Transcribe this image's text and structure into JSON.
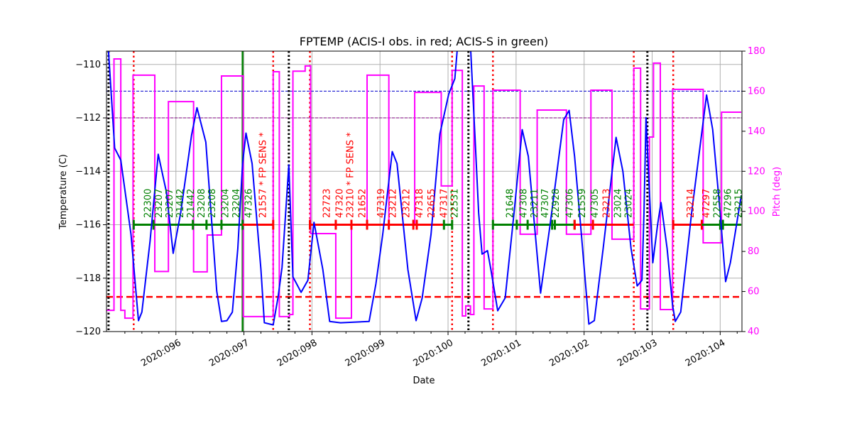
{
  "chart_data": {
    "type": "line",
    "title": "FPTEMP (ACIS-I obs. in red; ACIS-S in green)",
    "xlabel": "Date",
    "ylabel": "Temperature (C)",
    "y2label": "Pitch (deg)",
    "xlim": [
      94.98,
      104.32
    ],
    "ylim": [
      -120,
      -109.5
    ],
    "y2lim": [
      40,
      180
    ],
    "grid": true,
    "x_ticks": [
      {
        "day": 96,
        "label": "2020:096"
      },
      {
        "day": 97,
        "label": "2020:097"
      },
      {
        "day": 98,
        "label": "2020:098"
      },
      {
        "day": 99,
        "label": "2020:099"
      },
      {
        "day": 100,
        "label": "2020:100"
      },
      {
        "day": 101,
        "label": "2020:101"
      },
      {
        "day": 102,
        "label": "2020:102"
      },
      {
        "day": 103,
        "label": "2020:103"
      },
      {
        "day": 104,
        "label": "2020:104"
      }
    ],
    "y_ticks": [
      -120,
      -118,
      -116,
      -114,
      -112,
      -110
    ],
    "y2_ticks": [
      40,
      60,
      80,
      100,
      120,
      140,
      160,
      180
    ],
    "colors": {
      "temperature": "#0000ff",
      "pitch": "#ff00ff",
      "acis_i": "#ff0000",
      "acis_s": "#008000",
      "limit_blue": "#0000aa",
      "limit_purple": "#800080",
      "limit_red": "#ff0000"
    },
    "horizontal_lines": [
      {
        "value": -111,
        "color": "#0000cc",
        "style": "dashed"
      },
      {
        "value": -112,
        "color": "#800080",
        "style": "dashed"
      },
      {
        "value": -118.7,
        "color": "#ff0000",
        "style": "dashed-thick"
      }
    ],
    "vertical_lines": {
      "red_dotted": [
        95.38,
        97.43,
        97.97,
        100.06,
        100.66,
        102.73,
        103.31
      ],
      "black_dotted": [
        95.01,
        97.66,
        100.3,
        102.93
      ],
      "green_solid": [
        96.98
      ]
    },
    "temperature": [
      [
        95.0,
        -109.3
      ],
      [
        95.01,
        -109.52
      ],
      [
        95.1,
        -113.13
      ],
      [
        95.19,
        -113.58
      ],
      [
        95.34,
        -116.36
      ],
      [
        95.43,
        -119.01
      ],
      [
        95.45,
        -119.59
      ],
      [
        95.5,
        -119.27
      ],
      [
        95.62,
        -116.62
      ],
      [
        95.74,
        -113.36
      ],
      [
        95.86,
        -114.77
      ],
      [
        95.96,
        -117.07
      ],
      [
        96.07,
        -115.56
      ],
      [
        96.23,
        -112.65
      ],
      [
        96.31,
        -111.62
      ],
      [
        96.44,
        -112.91
      ],
      [
        96.54,
        -116.36
      ],
      [
        96.6,
        -118.48
      ],
      [
        96.67,
        -119.62
      ],
      [
        96.75,
        -119.59
      ],
      [
        96.83,
        -119.27
      ],
      [
        96.91,
        -116.89
      ],
      [
        96.98,
        -113.71
      ],
      [
        97.03,
        -112.57
      ],
      [
        97.12,
        -113.71
      ],
      [
        97.25,
        -117.68
      ],
      [
        97.3,
        -119.67
      ],
      [
        97.43,
        -119.75
      ],
      [
        97.5,
        -118.74
      ],
      [
        97.56,
        -117.6
      ],
      [
        97.66,
        -113.76
      ],
      [
        97.72,
        -117.95
      ],
      [
        97.84,
        -118.53
      ],
      [
        97.94,
        -118.08
      ],
      [
        98.03,
        -115.91
      ],
      [
        98.16,
        -117.68
      ],
      [
        98.26,
        -119.62
      ],
      [
        98.42,
        -119.67
      ],
      [
        98.84,
        -119.62
      ],
      [
        98.94,
        -118.21
      ],
      [
        99.04,
        -116.36
      ],
      [
        99.18,
        -113.26
      ],
      [
        99.25,
        -113.71
      ],
      [
        99.41,
        -117.68
      ],
      [
        99.53,
        -119.59
      ],
      [
        99.62,
        -118.74
      ],
      [
        99.75,
        -116.36
      ],
      [
        99.88,
        -112.6
      ],
      [
        100.01,
        -111.11
      ],
      [
        100.1,
        -110.53
      ],
      [
        100.14,
        -109.3
      ],
      [
        100.33,
        -109.3
      ],
      [
        100.4,
        -112.91
      ],
      [
        100.45,
        -115.56
      ],
      [
        100.5,
        -117.1
      ],
      [
        100.58,
        -116.97
      ],
      [
        100.63,
        -117.68
      ],
      [
        100.73,
        -119.22
      ],
      [
        100.84,
        -118.74
      ],
      [
        100.97,
        -115.56
      ],
      [
        101.09,
        -112.44
      ],
      [
        101.18,
        -113.44
      ],
      [
        101.36,
        -118.56
      ],
      [
        101.5,
        -116.0
      ],
      [
        101.7,
        -112.07
      ],
      [
        101.78,
        -111.72
      ],
      [
        101.86,
        -113.44
      ],
      [
        101.96,
        -116.36
      ],
      [
        102.07,
        -119.72
      ],
      [
        102.15,
        -119.59
      ],
      [
        102.28,
        -116.89
      ],
      [
        102.47,
        -112.73
      ],
      [
        102.57,
        -114.0
      ],
      [
        102.69,
        -116.89
      ],
      [
        102.78,
        -118.29
      ],
      [
        102.85,
        -118.08
      ],
      [
        102.88,
        -115.56
      ],
      [
        102.91,
        -111.99
      ],
      [
        102.95,
        -114.24
      ],
      [
        103.01,
        -117.42
      ],
      [
        103.08,
        -116.0
      ],
      [
        103.13,
        -115.17
      ],
      [
        103.22,
        -116.89
      ],
      [
        103.3,
        -119.01
      ],
      [
        103.34,
        -119.62
      ],
      [
        103.42,
        -119.27
      ],
      [
        103.58,
        -115.56
      ],
      [
        103.8,
        -111.14
      ],
      [
        103.89,
        -112.44
      ],
      [
        104.0,
        -115.56
      ],
      [
        104.08,
        -118.13
      ],
      [
        104.15,
        -117.42
      ],
      [
        104.31,
        -114.9
      ]
    ],
    "pitch_steps": [
      [
        94.98,
        50.6
      ],
      [
        95.09,
        176.1
      ],
      [
        95.19,
        50.6
      ],
      [
        95.25,
        46.7
      ],
      [
        95.37,
        168
      ],
      [
        95.69,
        70
      ],
      [
        95.89,
        154.8
      ],
      [
        96.26,
        69.8
      ],
      [
        96.46,
        88.2
      ],
      [
        96.67,
        167.6
      ],
      [
        96.99,
        47.5
      ],
      [
        97.43,
        169.7
      ],
      [
        97.52,
        47.5
      ],
      [
        97.67,
        48.5
      ],
      [
        97.72,
        170
      ],
      [
        97.9,
        172.6
      ],
      [
        97.98,
        88.9
      ],
      [
        98.35,
        46.7
      ],
      [
        98.58,
        93.5
      ],
      [
        98.81,
        168
      ],
      [
        99.13,
        93.5
      ],
      [
        99.51,
        159.4
      ],
      [
        99.9,
        112.7
      ],
      [
        100.06,
        170.4
      ],
      [
        100.21,
        47.8
      ],
      [
        100.26,
        52.8
      ],
      [
        100.33,
        48.5
      ],
      [
        100.38,
        162.6
      ],
      [
        100.53,
        51.3
      ],
      [
        100.66,
        160.5
      ],
      [
        101.06,
        88.6
      ],
      [
        101.31,
        150.6
      ],
      [
        101.74,
        88.6
      ],
      [
        102.1,
        160.5
      ],
      [
        102.41,
        86.1
      ],
      [
        102.73,
        171.5
      ],
      [
        102.83,
        51.3
      ],
      [
        102.96,
        137.1
      ],
      [
        103.02,
        174
      ],
      [
        103.12,
        51
      ],
      [
        103.3,
        160.9
      ],
      [
        103.75,
        84.3
      ],
      [
        104.02,
        149.5
      ],
      [
        104.31,
        149.5
      ]
    ],
    "obs_segments": [
      {
        "instrument": "ACIS-S",
        "start": 95.38,
        "end": 96.98,
        "ticks": [
          95.38,
          95.67,
          96.25,
          96.45,
          96.67,
          96.98
        ]
      },
      {
        "instrument": "ACIS-I",
        "start": 96.98,
        "end": 97.43,
        "ticks": [
          97.43
        ]
      },
      {
        "instrument": "ACIS-I",
        "start": 97.97,
        "end": 99.94,
        "ticks": [
          97.97,
          98.35,
          98.58,
          98.81,
          99.13,
          99.49,
          99.54
        ]
      },
      {
        "instrument": "ACIS-S",
        "start": 99.94,
        "end": 100.06,
        "ticks": [
          99.94,
          100.06
        ]
      },
      {
        "instrument": "ACIS-S",
        "start": 100.66,
        "end": 101.86,
        "ticks": [
          100.66,
          101.01,
          101.17,
          101.53,
          101.57,
          101.86
        ]
      },
      {
        "instrument": "ACIS-I",
        "start": 101.86,
        "end": 102.73,
        "ticks": [
          101.86,
          102.13
        ]
      },
      {
        "instrument": "ACIS-I",
        "start": 103.31,
        "end": 103.73,
        "ticks": [
          103.31,
          103.73
        ]
      },
      {
        "instrument": "ACIS-S",
        "start": 103.73,
        "end": 104.31,
        "ticks": [
          104.0,
          104.04
        ]
      }
    ],
    "obs_labels": [
      {
        "day": 95.58,
        "text": "22300",
        "instrument": "ACIS-S"
      },
      {
        "day": 95.74,
        "text": "23207",
        "instrument": "ACIS-S"
      },
      {
        "day": 95.79,
        "text": "23207",
        "instrument": "ACIS-S"
      },
      {
        "day": 95.94,
        "text": "21442",
        "instrument": "ACIS-S"
      },
      {
        "day": 96.13,
        "text": "21442",
        "instrument": "ACIS-S"
      },
      {
        "day": 96.31,
        "text": "23208",
        "instrument": "ACIS-S"
      },
      {
        "day": 96.41,
        "text": "23208",
        "instrument": "ACIS-S"
      },
      {
        "day": 96.72,
        "text": "23204",
        "instrument": "ACIS-S"
      },
      {
        "day": 96.88,
        "text": "23204",
        "instrument": "ACIS-S"
      },
      {
        "day": 97.06,
        "text": "47326",
        "instrument": "ACIS-S"
      },
      {
        "day": 97.27,
        "text": "21557 * FP SENS *",
        "instrument": "ACIS-I"
      },
      {
        "day": 98.21,
        "text": "22723",
        "instrument": "ACIS-I"
      },
      {
        "day": 98.4,
        "text": "47320",
        "instrument": "ACIS-I"
      },
      {
        "day": 98.52,
        "text": "23210 * FP SENS *",
        "instrument": "ACIS-I"
      },
      {
        "day": 98.73,
        "text": "21652",
        "instrument": "ACIS-I"
      },
      {
        "day": 99.01,
        "text": "47319",
        "instrument": "ACIS-I"
      },
      {
        "day": 99.18,
        "text": "23212",
        "instrument": "ACIS-I"
      },
      {
        "day": 99.38,
        "text": "23212",
        "instrument": "ACIS-I"
      },
      {
        "day": 99.57,
        "text": "47318",
        "instrument": "ACIS-I"
      },
      {
        "day": 99.75,
        "text": "22655",
        "instrument": "ACIS-I"
      },
      {
        "day": 99.93,
        "text": "47317",
        "instrument": "ACIS-I"
      },
      {
        "day": 100.01,
        "text": "22531",
        "instrument": "ACIS-S"
      },
      {
        "day": 100.9,
        "text": "21648",
        "instrument": "ACIS-S"
      },
      {
        "day": 101.1,
        "text": "47308",
        "instrument": "ACIS-S"
      },
      {
        "day": 101.26,
        "text": "23211",
        "instrument": "ACIS-S"
      },
      {
        "day": 101.37,
        "text": "47307",
        "instrument": "ACIS-S"
      },
      {
        "day": 101.57,
        "text": "22928",
        "instrument": "ACIS-S"
      },
      {
        "day": 101.78,
        "text": "47306",
        "instrument": "ACIS-S"
      },
      {
        "day": 101.96,
        "text": "21559",
        "instrument": "ACIS-S"
      },
      {
        "day": 102.15,
        "text": "47305",
        "instrument": "ACIS-S"
      },
      {
        "day": 102.32,
        "text": "23213",
        "instrument": "ACIS-I"
      },
      {
        "day": 102.49,
        "text": "23024",
        "instrument": "ACIS-S"
      },
      {
        "day": 102.64,
        "text": "23024",
        "instrument": "ACIS-S"
      },
      {
        "day": 103.56,
        "text": "23214",
        "instrument": "ACIS-I"
      },
      {
        "day": 103.79,
        "text": "47297",
        "instrument": "ACIS-I"
      },
      {
        "day": 103.95,
        "text": "22558",
        "instrument": "ACIS-S"
      },
      {
        "day": 104.1,
        "text": "47296",
        "instrument": "ACIS-S"
      },
      {
        "day": 104.26,
        "text": "23215",
        "instrument": "ACIS-S"
      }
    ]
  }
}
